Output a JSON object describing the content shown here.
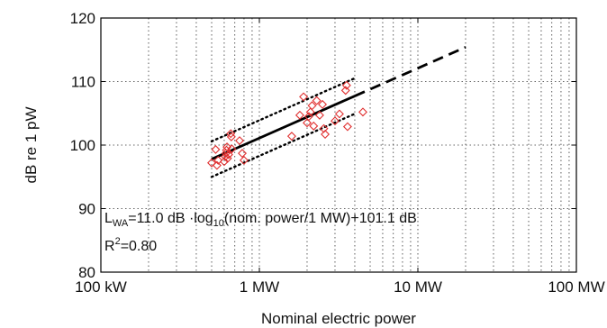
{
  "chart_data": {
    "type": "scatter",
    "title": "",
    "xlabel": "Nominal electric power",
    "ylabel": "dB re 1 pW",
    "x_scale": "log",
    "x_unit": "W",
    "xlim": [
      100000,
      100000000
    ],
    "ylim": [
      80,
      120
    ],
    "x_ticks": [
      {
        "value": 100000,
        "label": "100 kW"
      },
      {
        "value": 1000000,
        "label": "1 MW"
      },
      {
        "value": 10000000,
        "label": "10 MW"
      },
      {
        "value": 100000000,
        "label": "100 MW"
      }
    ],
    "y_ticks": [
      {
        "value": 80,
        "label": "80"
      },
      {
        "value": 90,
        "label": "90"
      },
      {
        "value": 100,
        "label": "100"
      },
      {
        "value": 110,
        "label": "110"
      },
      {
        "value": 120,
        "label": "120"
      }
    ],
    "grid": "dotted, major and minor",
    "marker_color": "#e03030",
    "line_color": "#000000",
    "points": [
      {
        "x": 500000,
        "y": 97.2
      },
      {
        "x": 530000,
        "y": 99.3
      },
      {
        "x": 540000,
        "y": 96.8
      },
      {
        "x": 550000,
        "y": 97.6
      },
      {
        "x": 600000,
        "y": 97.4
      },
      {
        "x": 610000,
        "y": 98.2
      },
      {
        "x": 615000,
        "y": 98.7
      },
      {
        "x": 620000,
        "y": 99.2
      },
      {
        "x": 625000,
        "y": 99.7
      },
      {
        "x": 630000,
        "y": 97.9
      },
      {
        "x": 640000,
        "y": 98.5
      },
      {
        "x": 660000,
        "y": 101.8
      },
      {
        "x": 665000,
        "y": 101.3
      },
      {
        "x": 670000,
        "y": 99.4
      },
      {
        "x": 750000,
        "y": 100.7
      },
      {
        "x": 780000,
        "y": 98.7
      },
      {
        "x": 800000,
        "y": 97.6
      },
      {
        "x": 1600000,
        "y": 101.4
      },
      {
        "x": 1800000,
        "y": 104.7
      },
      {
        "x": 1900000,
        "y": 107.6
      },
      {
        "x": 2000000,
        "y": 103.5
      },
      {
        "x": 2050000,
        "y": 104.5
      },
      {
        "x": 2100000,
        "y": 105.2
      },
      {
        "x": 2150000,
        "y": 106.2
      },
      {
        "x": 2200000,
        "y": 103.0
      },
      {
        "x": 2300000,
        "y": 107.0
      },
      {
        "x": 2400000,
        "y": 104.7
      },
      {
        "x": 2500000,
        "y": 106.4
      },
      {
        "x": 2550000,
        "y": 102.6
      },
      {
        "x": 2600000,
        "y": 101.7
      },
      {
        "x": 3000000,
        "y": 103.8
      },
      {
        "x": 3200000,
        "y": 104.9
      },
      {
        "x": 3500000,
        "y": 108.6
      },
      {
        "x": 3550000,
        "y": 109.4
      },
      {
        "x": 3600000,
        "y": 102.9
      },
      {
        "x": 4500000,
        "y": 105.2
      }
    ],
    "regression": {
      "slope_db_per_decade": 11.0,
      "intercept_db": 101.1,
      "solid_x_range": [
        500000,
        4000000
      ],
      "dashed_x_range": [
        4000000,
        20000000
      ],
      "confidence_offset_db": 2.8,
      "confidence_x_range": [
        500000,
        4000000
      ]
    },
    "annotations": {
      "equation": {
        "L": "L",
        "L_sub": "WA",
        "mid": "=11.0 dB ·log",
        "log_sub": "10",
        "end": "(nom. power/1 MW)+101.1 dB"
      },
      "r2": {
        "R": "R",
        "R_sup": "2",
        "end": "=0.80"
      }
    }
  }
}
